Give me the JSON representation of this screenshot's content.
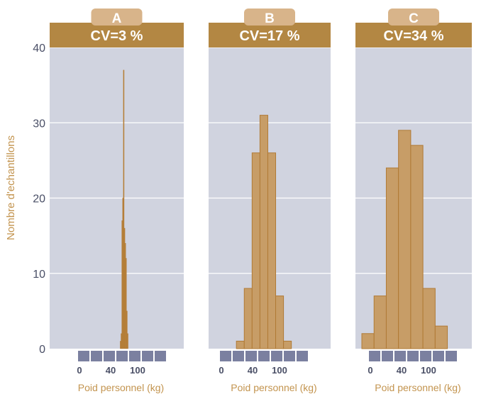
{
  "figure": {
    "ylabel": "Nombre d'echantillons",
    "xlabel": "Poid personnel (kg)"
  },
  "colors": {
    "header_band": "#b38743",
    "tab": "#d8b48a",
    "bar_fill": "#c79d67",
    "bar_stroke": "#b07a35",
    "bar_fill_narrow": "#b8803a",
    "plot_bg": "#d0d3df",
    "axis_text": "#4a4f66",
    "label_text": "#c3944f",
    "scale_block": "#7b80a0"
  },
  "chart_data": [
    {
      "type": "bar",
      "panel_label": "A",
      "title": "CV=3 %",
      "ylabel": "Nombre d'echantillons",
      "xlabel": "Poid personnel (kg)",
      "yticks": [
        0,
        10,
        20,
        30,
        40
      ],
      "ylim": [
        0,
        40
      ],
      "xticks": [
        "0",
        "40",
        "100"
      ],
      "bin_edges": [
        62,
        63,
        64,
        65,
        66,
        67,
        68,
        69,
        70,
        71,
        72,
        73
      ],
      "values": [
        1,
        2,
        17,
        20,
        37,
        16,
        14,
        12,
        5,
        2,
        0
      ],
      "grid": true
    },
    {
      "type": "bar",
      "panel_label": "B",
      "title": "CV=17 %",
      "ylabel": "Nombre d'echantillons",
      "xlabel": "Poid personnel (kg)",
      "yticks": [
        0,
        10,
        20,
        30,
        40
      ],
      "ylim": [
        0,
        40
      ],
      "xticks": [
        "0",
        "40",
        "100"
      ],
      "bin_edges": [
        30,
        40,
        50,
        60,
        70,
        80,
        90,
        100
      ],
      "values": [
        1,
        8,
        26,
        31,
        26,
        7,
        1
      ],
      "grid": true
    },
    {
      "type": "bar",
      "panel_label": "C",
      "title": "CV=34 %",
      "ylabel": "Nombre d'echantillons",
      "xlabel": "Poid personnel (kg)",
      "yticks": [
        0,
        10,
        20,
        30,
        40
      ],
      "ylim": [
        0,
        40
      ],
      "xticks": [
        "0",
        "40",
        "100"
      ],
      "bin_edges": [
        0,
        20,
        40,
        60,
        80,
        100,
        120,
        140,
        160
      ],
      "values": [
        2,
        7,
        24,
        29,
        27,
        8,
        3,
        0
      ],
      "grid": true
    }
  ]
}
